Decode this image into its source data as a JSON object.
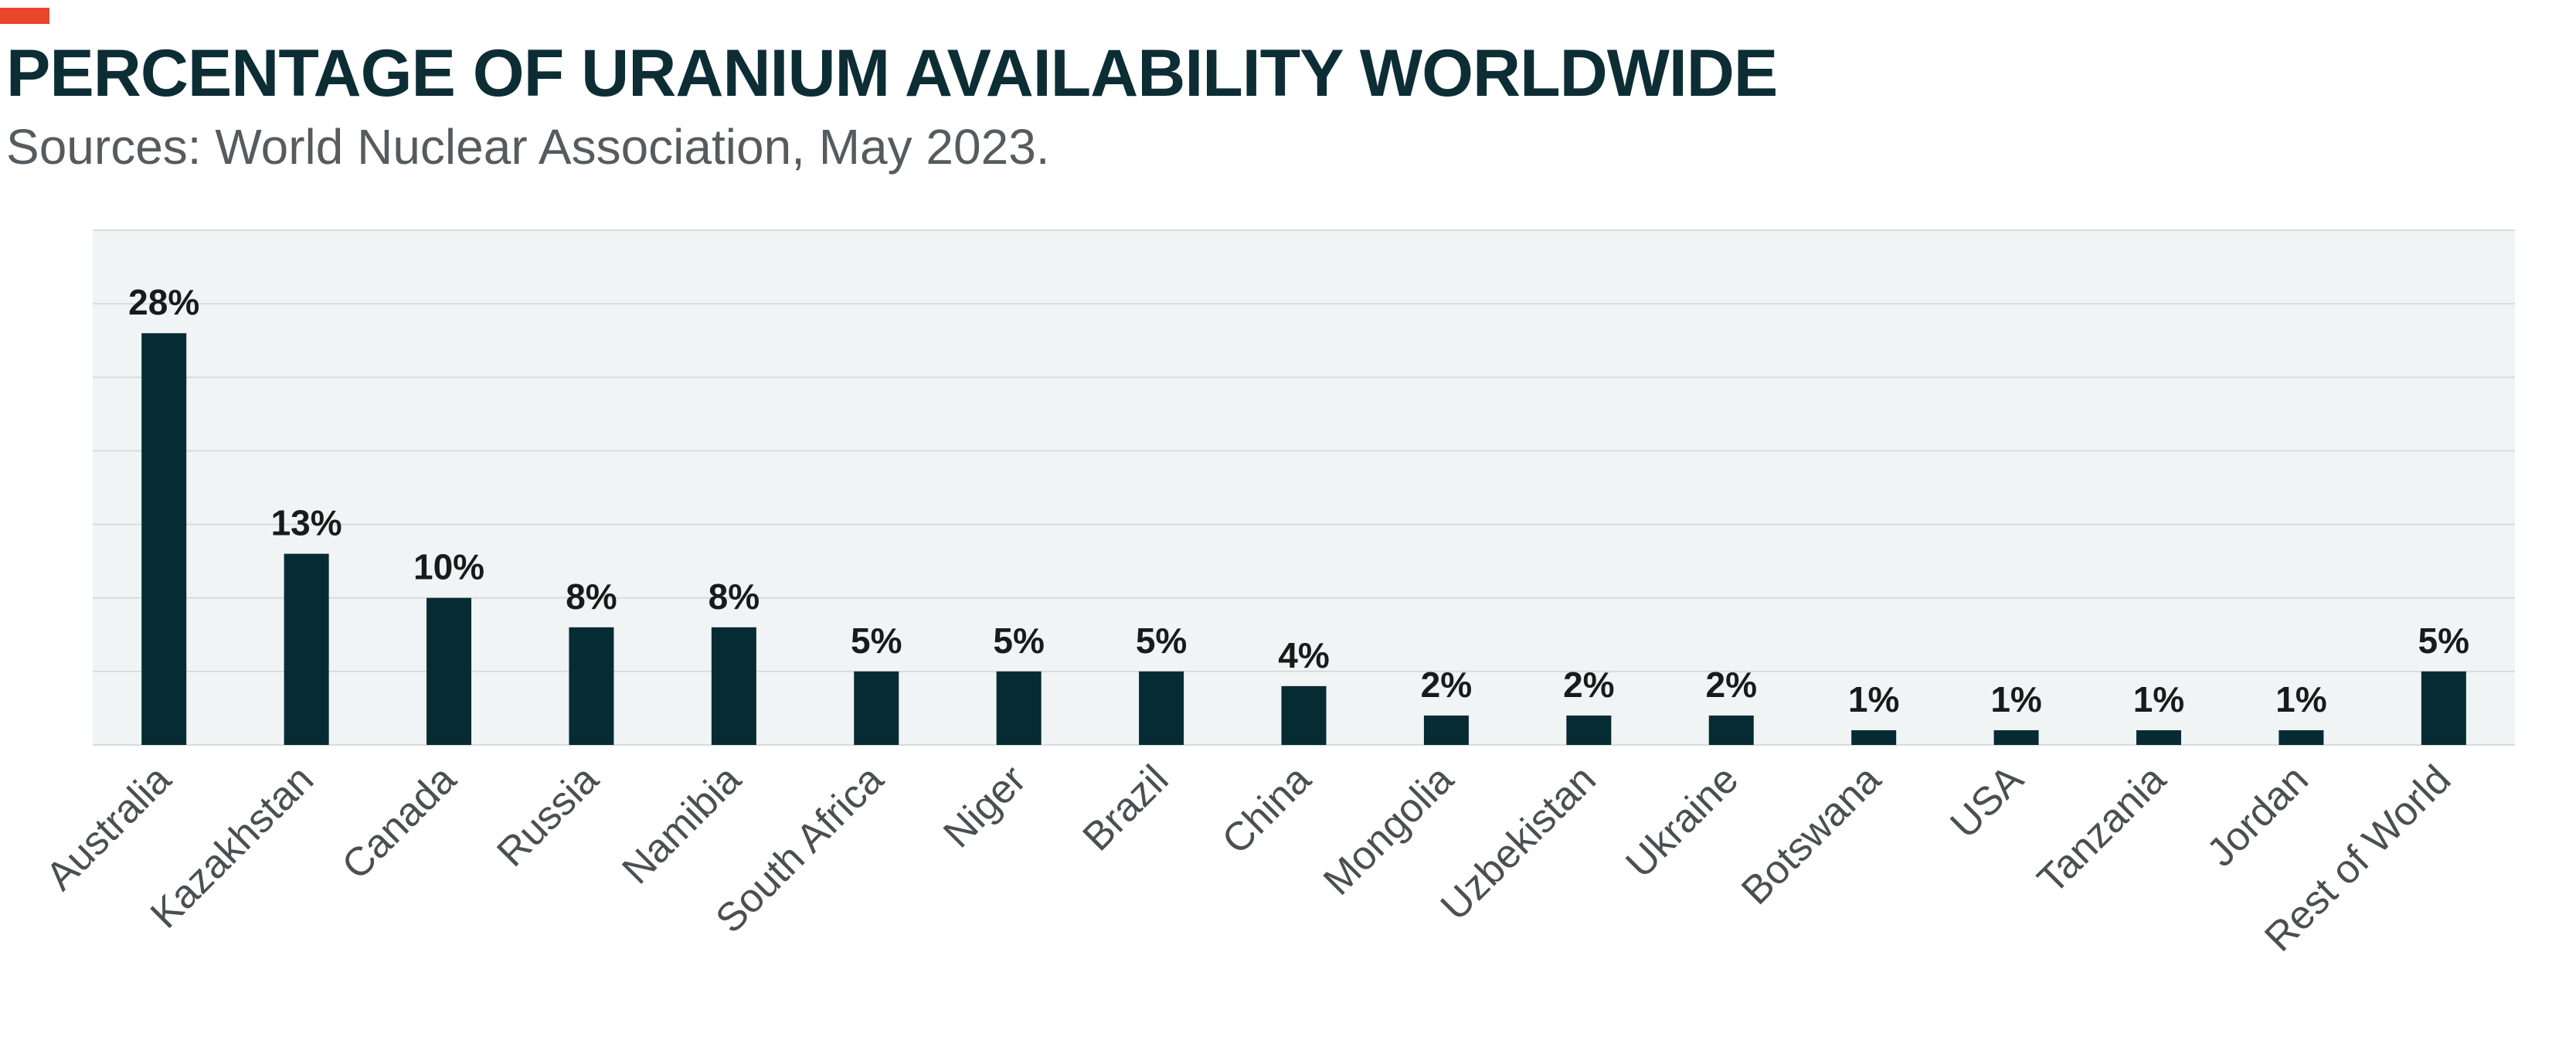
{
  "header": {
    "title": "PERCENTAGE OF URANIUM AVAILABILITY WORLDWIDE",
    "subtitle": "Sources: World Nuclear Association, May 2023."
  },
  "colors": {
    "accent": "#e8472a",
    "title": "#0d2d35",
    "bar": "#062b33",
    "plot_background": "#f0f4f4",
    "gridline": "#d7dcdd",
    "text": "#1a1a1a",
    "tick_label": "#4a4f52"
  },
  "chart_data": {
    "type": "bar",
    "title": "PERCENTAGE OF URANIUM AVAILABILITY WORLDWIDE",
    "xlabel": "",
    "ylabel": "",
    "ylim": [
      0,
      35
    ],
    "grid": true,
    "gridline_values": [
      5,
      10,
      15,
      20,
      25,
      30,
      35
    ],
    "categories": [
      "Australia",
      "Kazakhstan",
      "Canada",
      "Russia",
      "Namibia",
      "South Africa",
      "Niger",
      "Brazil",
      "China",
      "Mongolia",
      "Uzbekistan",
      "Ukraine",
      "Botswana",
      "USA",
      "Tanzania",
      "Jordan",
      "Rest of World"
    ],
    "values": [
      28,
      13,
      10,
      8,
      8,
      5,
      5,
      5,
      4,
      2,
      2,
      2,
      1,
      1,
      1,
      1,
      5
    ],
    "data_labels": [
      "28%",
      "13%",
      "10%",
      "8%",
      "8%",
      "5%",
      "5%",
      "5%",
      "4%",
      "2%",
      "2%",
      "2%",
      "1%",
      "1%",
      "1%",
      "1%",
      "5%"
    ]
  }
}
